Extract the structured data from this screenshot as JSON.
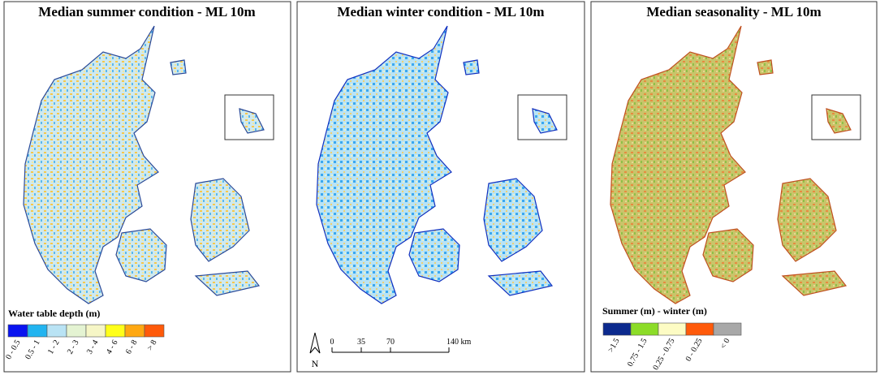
{
  "panels": [
    {
      "title": "Median summer condition - ML 10m"
    },
    {
      "title": "Median winter condition - ML 10m"
    },
    {
      "title": "Median seasonality - ML 10m"
    }
  ],
  "legend_depth": {
    "title": "Water table depth (m)",
    "items": [
      {
        "label": "0 - 0.5",
        "color": "#0a14f0"
      },
      {
        "label": "0.5 - 1",
        "color": "#22b4f0"
      },
      {
        "label": "1 - 2",
        "color": "#b9e3f4"
      },
      {
        "label": "2 - 3",
        "color": "#e4f3d2"
      },
      {
        "label": "3 - 4",
        "color": "#f6f6c6"
      },
      {
        "label": "4 - 6",
        "color": "#ffff1a"
      },
      {
        "label": "6 - 8",
        "color": "#ffa812"
      },
      {
        "label": "> 8",
        "color": "#ff5a0a"
      }
    ]
  },
  "legend_season": {
    "title": "Summer (m) - winter (m)",
    "items": [
      {
        "label": ">1.5",
        "color": "#0c2a8e"
      },
      {
        "label": "0.75 - 1.5",
        "color": "#8cdc28"
      },
      {
        "label": "0.25 - 0.75",
        "color": "#fdfcc4"
      },
      {
        "label": "0 - 0.25",
        "color": "#ff5a0a"
      },
      {
        "label": "< 0",
        "color": "#a8a8a8"
      }
    ]
  },
  "scale_bar": {
    "ticks": [
      0,
      35,
      70,
      {
        "value": 140,
        "label": "140 km"
      }
    ]
  },
  "north": "N"
}
